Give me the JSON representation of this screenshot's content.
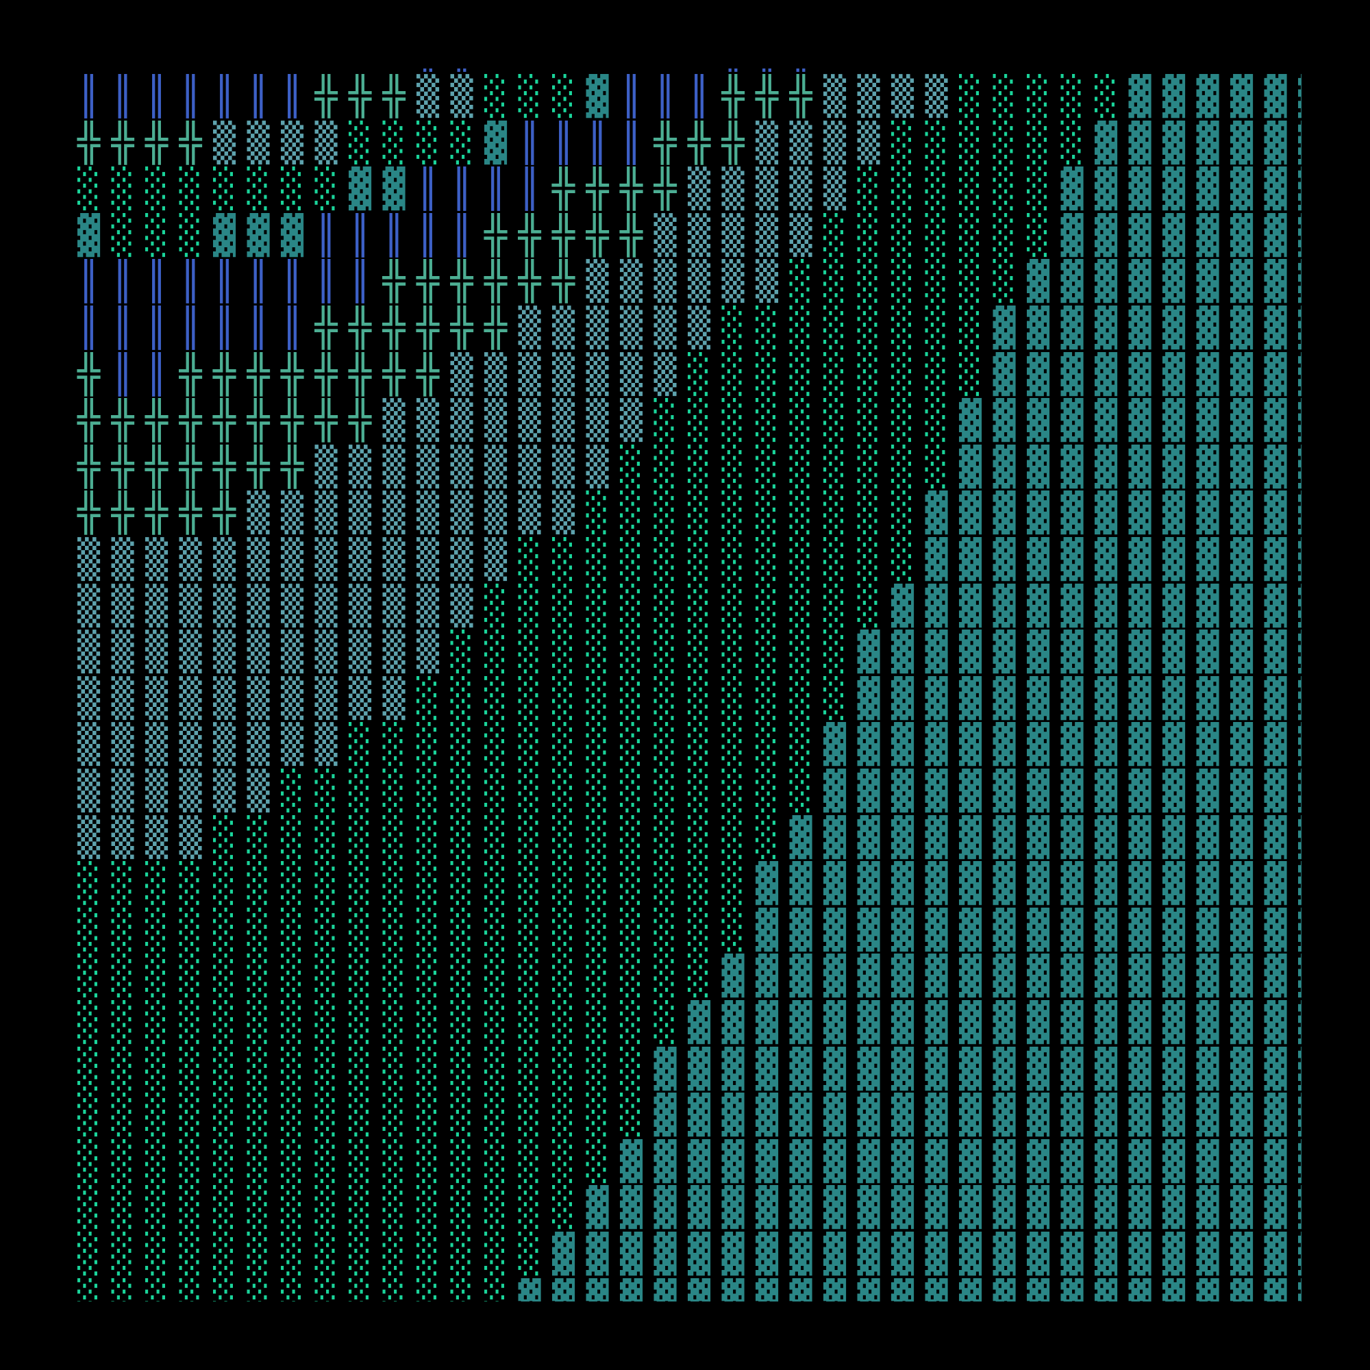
{
  "background": "#000000",
  "glyph_colors": {
    "║": "#3d60c6",
    "╬": "#4cae93",
    "▒": "#5ea2ad",
    "░": "#1ad49a",
    "▓": "#2a8686"
  },
  "rows": [
    "          ║║       ║║║               ",
    "║║║║║║║╬╬╬▒▒░░░▓║║║╬╬╬▒▒▒▒░░░░░▓▓▓▓▓▓",
    "╬╬╬╬▒▒▒▒░░░░▓║║║║╬╬╬▒▒▒▒░░░░░░▓▓▓▓▓▓▓",
    "░░░░░░░░▓▓║║║║╬╬╬╬▒▒▒▒▒░░░░░░▓▓▓▓▓▓▓▓",
    "▓░░░▓▓▓║║║║║╬╬╬╬╬▒▒▒▒▒░░░░░░░▓▓▓▓▓▓▓▓",
    "║║║║║║║║║╬╬╬╬╬╬▒▒▒▒▒▒░░░░░░░▓▓▓▓▓▓▓▓▓",
    "║║║║║║║╬╬╬╬╬╬▒▒▒▒▒▒░░░░░░░░▓▓▓▓▓▓▓▓▓▓",
    "╬║║╬╬╬╬╬╬╬╬▒▒▒▒▒▒▒░░░░░░░░░▓▓▓▓▓▓▓▓▓▓",
    "╬╬╬╬╬╬╬╬╬▒▒▒▒▒▒▒▒░░░░░░░░░▓▓▓▓▓▓▓▓▓▓▓",
    "╬╬╬╬╬╬╬▒▒▒▒▒▒▒▒▒░░░░░░░░░░▓▓▓▓▓▓▓▓▓▓▓",
    "╬╬╬╬╬▒▒▒▒▒▒▒▒▒▒░░░░░░░░░░▓▓▓▓▓▓▓▓▓▓▓▓",
    "▒▒▒▒▒▒▒▒▒▒▒▒▒░░░░░░░░░░░░▓▓▓▓▓▓▓▓▓▓▓▓",
    "▒▒▒▒▒▒▒▒▒▒▒▒░░░░░░░░░░░░▓▓▓▓▓▓▓▓▓▓▓▓▓",
    "▒▒▒▒▒▒▒▒▒▒▒░░░░░░░░░░░░▓▓▓▓▓▓▓▓▓▓▓▓▓▓",
    "▒▒▒▒▒▒▒▒▒▒░░░░░░░░░░░░░▓▓▓▓▓▓▓▓▓▓▓▓▓▓",
    "▒▒▒▒▒▒▒▒░░░░░░░░░░░░░░▓▓▓▓▓▓▓▓▓▓▓▓▓▓▓",
    "▒▒▒▒▒▒░░░░░░░░░░░░░░░░▓▓▓▓▓▓▓▓▓▓▓▓▓▓▓",
    "▒▒▒▒░░░░░░░░░░░░░░░░░▓▓▓▓▓▓▓▓▓▓▓▓▓▓▓▓",
    "░░░░░░░░░░░░░░░░░░░░▓▓▓▓▓▓▓▓▓▓▓▓▓▓▓▓▓",
    "░░░░░░░░░░░░░░░░░░░░▓▓▓▓▓▓▓▓▓▓▓▓▓▓▓▓▓",
    "░░░░░░░░░░░░░░░░░░░▓▓▓▓▓▓▓▓▓▓▓▓▓▓▓▓▓▓",
    "░░░░░░░░░░░░░░░░░░▓▓▓▓▓▓▓▓▓▓▓▓▓▓▓▓▓▓▓",
    "░░░░░░░░░░░░░░░░░▓▓▓▓▓▓▓▓▓▓▓▓▓▓▓▓▓▓▓▓",
    "░░░░░░░░░░░░░░░░░▓▓▓▓▓▓▓▓▓▓▓▓▓▓▓▓▓▓▓▓",
    "░░░░░░░░░░░░░░░░▓▓▓▓▓▓▓▓▓▓▓▓▓▓▓▓▓▓▓▓▓",
    "░░░░░░░░░░░░░░░▓▓▓▓▓▓▓▓▓▓▓▓▓▓▓▓▓▓▓▓▓▓",
    "░░░░░░░░░░░░░░▓▓▓▓▓▓▓▓▓▓▓▓▓▓▓▓▓▓▓▓▓▓▓",
    "░░░░░░░░░░░░░▓▓▓▓▓▓▓▓▓▓▓▓▓▓▓▓▓▓▓▓▓▓▓▓"
  ]
}
